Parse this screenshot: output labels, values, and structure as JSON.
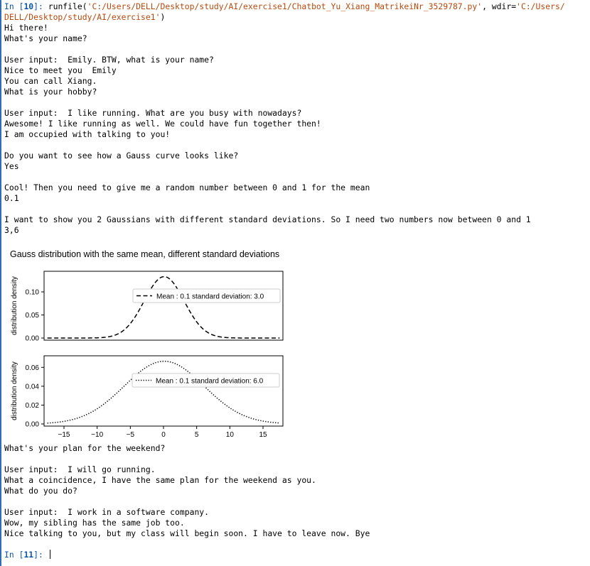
{
  "console": {
    "in_prompt_1": {
      "prefix": "In [",
      "num": "10",
      "suffix": "]: "
    },
    "run_call": {
      "fn": "runfile(",
      "path": "'C:/Users/DELL/Desktop/study/AI/exercise1/Chatbot_Yu_Xiang_MatrikeiNr_3529787.py'",
      "mid": ", wdir=",
      "wdir_part1": "'C:/Users/",
      "wdir_part2": "DELL/Desktop/study/AI/exercise1'",
      "close": ")"
    },
    "lines_before": [
      "Hi there!",
      "What's your name?",
      "",
      "User input:  Emily. BTW, what is your name?",
      "Nice to meet you  Emily",
      "You can call Xiang.",
      "What is your hobby?",
      "",
      "User input:  I like running. What are you busy with nowadays?",
      "Awesome! I like running as well. We could have fun together then!",
      "I am occupied with talking to you!",
      "",
      "Do you want to see how a Gauss curve looks like?",
      "Yes",
      "",
      "Cool! Then you need to give me a random number between 0 and 1 for the mean",
      "0.1",
      "",
      "I want to show you 2 Gaussians with different standard deviations. So I need two numbers now between 0 and 1",
      "3,6"
    ],
    "lines_after": [
      "What's your plan for the weekend?",
      "",
      "User input:  I will go running.",
      "What a coincidence, I have the same plan for the weekend as you.",
      "What do you do?",
      "",
      "User input:  I work in a software company.",
      "Wow, my sibling has the same job too.",
      "Nice talking to you, but my class will begin soon. I have to leave now. Bye"
    ],
    "in_prompt_2": {
      "prefix": "In [",
      "num": "11",
      "suffix": "]: "
    }
  },
  "chart_data": [
    {
      "type": "line",
      "title": "Gauss distribution with the same mean, different standard deviations",
      "ylabel": "distribution density",
      "xlim": [
        -18,
        18
      ],
      "ylim": [
        0,
        0.14
      ],
      "yticks": [
        "0.00",
        "0.05",
        "0.10"
      ],
      "yticks_values": [
        0,
        0.05,
        0.1
      ],
      "legend_placement": "center-right",
      "series": [
        {
          "name": "Mean : 0.1 standard deviation: 3.0",
          "mean": 0.1,
          "std": 3.0,
          "style": "dashed",
          "color": "#000000"
        }
      ]
    },
    {
      "type": "line",
      "ylabel": "distribution density",
      "xlabel": "",
      "xlim": [
        -18,
        18
      ],
      "ylim": [
        0,
        0.07
      ],
      "yticks": [
        "0.00",
        "0.02",
        "0.04",
        "0.06"
      ],
      "yticks_values": [
        0,
        0.02,
        0.04,
        0.06
      ],
      "xticks": [
        "−15",
        "−10",
        "−5",
        "0",
        "5",
        "10",
        "15"
      ],
      "xticks_values": [
        -15,
        -10,
        -5,
        0,
        5,
        10,
        15
      ],
      "legend_placement": "center-right",
      "series": [
        {
          "name": "Mean : 0.1 standard deviation: 6.0",
          "mean": 0.1,
          "std": 6.0,
          "style": "dotted",
          "color": "#000000"
        }
      ]
    }
  ]
}
